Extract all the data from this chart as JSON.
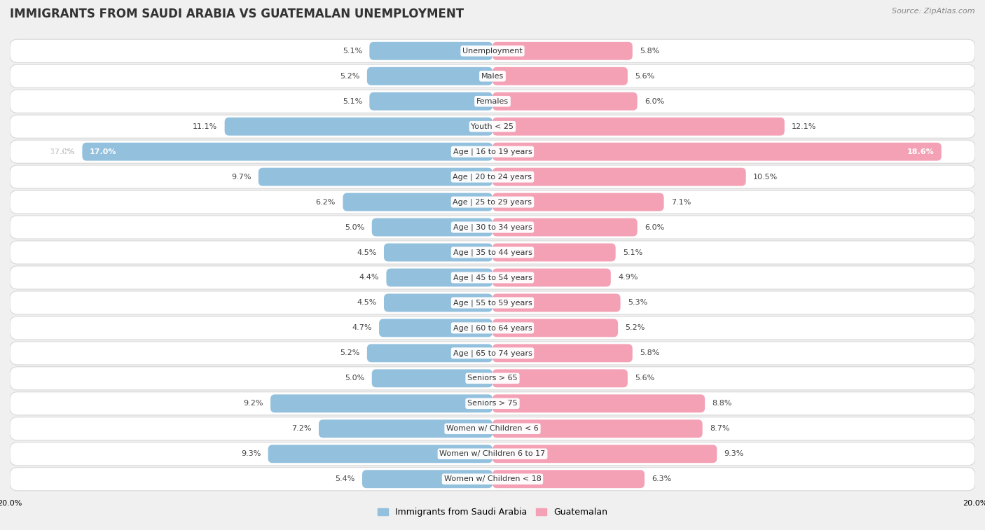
{
  "title": "IMMIGRANTS FROM SAUDI ARABIA VS GUATEMALAN UNEMPLOYMENT",
  "source": "Source: ZipAtlas.com",
  "categories": [
    "Unemployment",
    "Males",
    "Females",
    "Youth < 25",
    "Age | 16 to 19 years",
    "Age | 20 to 24 years",
    "Age | 25 to 29 years",
    "Age | 30 to 34 years",
    "Age | 35 to 44 years",
    "Age | 45 to 54 years",
    "Age | 55 to 59 years",
    "Age | 60 to 64 years",
    "Age | 65 to 74 years",
    "Seniors > 65",
    "Seniors > 75",
    "Women w/ Children < 6",
    "Women w/ Children 6 to 17",
    "Women w/ Children < 18"
  ],
  "left_values": [
    5.1,
    5.2,
    5.1,
    11.1,
    17.0,
    9.7,
    6.2,
    5.0,
    4.5,
    4.4,
    4.5,
    4.7,
    5.2,
    5.0,
    9.2,
    7.2,
    9.3,
    5.4
  ],
  "right_values": [
    5.8,
    5.6,
    6.0,
    12.1,
    18.6,
    10.5,
    7.1,
    6.0,
    5.1,
    4.9,
    5.3,
    5.2,
    5.8,
    5.6,
    8.8,
    8.7,
    9.3,
    6.3
  ],
  "left_color": "#92c0dd",
  "right_color": "#f4a0b5",
  "left_label": "Immigrants from Saudi Arabia",
  "right_label": "Guatemalan",
  "background_color": "#f0f0f0",
  "row_bg_color": "#ffffff",
  "row_border_color": "#d8d8d8",
  "max_val": 20.0,
  "title_fontsize": 12,
  "value_fontsize": 8,
  "cat_fontsize": 8,
  "legend_fontsize": 9,
  "source_fontsize": 8
}
